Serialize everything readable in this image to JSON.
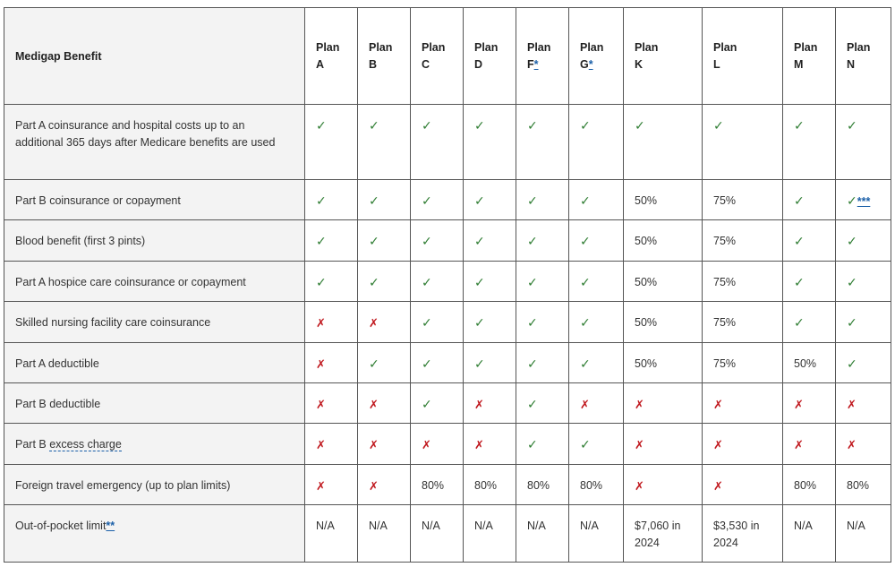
{
  "table": {
    "benefit_header": "Medigap Benefit",
    "plans": [
      {
        "word": "Plan",
        "letter": "A",
        "note": ""
      },
      {
        "word": "Plan",
        "letter": "B",
        "note": ""
      },
      {
        "word": "Plan",
        "letter": "C",
        "note": ""
      },
      {
        "word": "Plan",
        "letter": "D",
        "note": ""
      },
      {
        "word": "Plan",
        "letter": "F",
        "note": "*"
      },
      {
        "word": "Plan",
        "letter": "G",
        "note": "*"
      },
      {
        "word": "Plan",
        "letter": "K",
        "note": ""
      },
      {
        "word": "Plan",
        "letter": "L",
        "note": ""
      },
      {
        "word": "Plan",
        "letter": "M",
        "note": ""
      },
      {
        "word": "Plan",
        "letter": "N",
        "note": ""
      }
    ],
    "rows": [
      {
        "label": "Part A coinsurance and hospital costs up to an additional 365 days after Medicare benefits are used",
        "height": 84,
        "cells": [
          "✓",
          "✓",
          "✓",
          "✓",
          "✓",
          "✓",
          "✓",
          "✓",
          "✓",
          "✓"
        ]
      },
      {
        "label": "Part B coinsurance or copayment",
        "height": 45,
        "cells": [
          "✓",
          "✓",
          "✓",
          "✓",
          "✓",
          "✓",
          "50%",
          "75%",
          "✓",
          "✓***"
        ]
      },
      {
        "label": "Blood benefit (first 3 pints)",
        "height": 46,
        "cells": [
          "✓",
          "✓",
          "✓",
          "✓",
          "✓",
          "✓",
          "50%",
          "75%",
          "✓",
          "✓"
        ]
      },
      {
        "label": "Part A hospice care coinsurance or copayment",
        "height": 45,
        "cells": [
          "✓",
          "✓",
          "✓",
          "✓",
          "✓",
          "✓",
          "50%",
          "75%",
          "✓",
          "✓"
        ]
      },
      {
        "label": "Skilled nursing facility care coinsurance",
        "height": 46,
        "cells": [
          "✗",
          "✗",
          "✓",
          "✓",
          "✓",
          "✓",
          "50%",
          "75%",
          "✓",
          "✓"
        ]
      },
      {
        "label": "Part A deductible",
        "height": 45,
        "cells": [
          "✗",
          "✓",
          "✓",
          "✓",
          "✓",
          "✓",
          "50%",
          "75%",
          "50%",
          "✓"
        ]
      },
      {
        "label": "Part B deductible",
        "height": 45,
        "cells": [
          "✗",
          "✗",
          "✓",
          "✗",
          "✓",
          "✗",
          "✗",
          "✗",
          "✗",
          "✗"
        ]
      },
      {
        "label_pre": "Part B ",
        "label_term": "excess charge",
        "height": 46,
        "cells": [
          "✗",
          "✗",
          "✗",
          "✗",
          "✓",
          "✓",
          "✗",
          "✗",
          "✗",
          "✗"
        ]
      },
      {
        "label": "Foreign travel emergency (up to plan limits)",
        "height": 45,
        "cells": [
          "✗",
          "✗",
          "80%",
          "80%",
          "80%",
          "80%",
          "✗",
          "✗",
          "80%",
          "80%"
        ]
      },
      {
        "label_pre": "Out-of-pocket limit",
        "label_note": "**",
        "height": 64,
        "cells": [
          "N/A",
          "N/A",
          "N/A",
          "N/A",
          "N/A",
          "N/A",
          "$7,060 in 2024",
          "$3,530 in 2024",
          "N/A",
          "N/A"
        ]
      }
    ],
    "colors": {
      "check": "#2e7d32",
      "cross": "#c0171d",
      "benefit_bg": "#f3f3f3",
      "border": "#555555",
      "link": "#1a5fa8"
    }
  }
}
